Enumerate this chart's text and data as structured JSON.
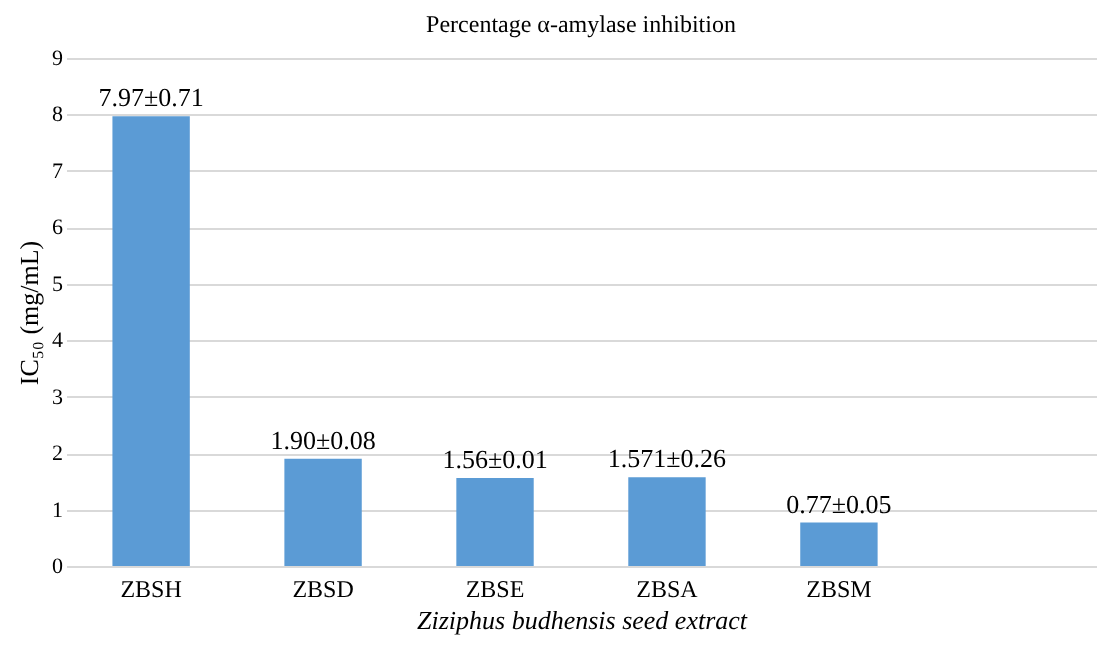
{
  "chart_data": {
    "type": "bar",
    "title": "Percentage α-amylase inhibition",
    "xlabel": "Ziziphus budhensis seed extract",
    "ylabel": "IC₅₀ (mg/mL)",
    "categories": [
      "ZBSH",
      "ZBSD",
      "ZBSE",
      "ZBSA",
      "ZBSM",
      null
    ],
    "values": [
      7.97,
      1.9,
      1.56,
      1.571,
      0.77,
      null
    ],
    "value_labels": [
      "7.97±0.71",
      "1.90±0.08",
      "1.56±0.01",
      "1.571±0.26",
      "0.77±0.05",
      null
    ],
    "color": "#5b9bd5",
    "ylim": [
      0,
      9
    ],
    "yticks": [
      0,
      1,
      2,
      3,
      4,
      5,
      6,
      7,
      8,
      9
    ],
    "grid": "y"
  }
}
